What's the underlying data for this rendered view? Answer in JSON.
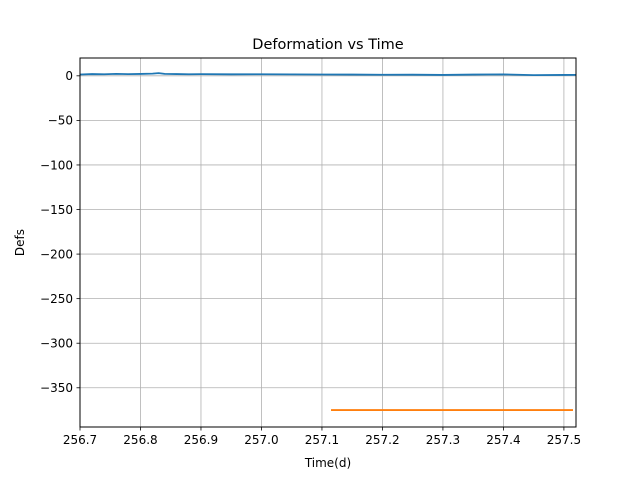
{
  "chart_data": {
    "type": "line",
    "title": "Deformation vs Time",
    "xlabel": "Time(d)",
    "ylabel": "Defs",
    "xlim": [
      256.7,
      257.52
    ],
    "ylim": [
      -394,
      20
    ],
    "xticks": [
      256.7,
      256.8,
      256.9,
      257.0,
      257.1,
      257.2,
      257.3,
      257.4,
      257.5
    ],
    "xtick_labels": [
      "256.7",
      "256.8",
      "256.9",
      "257.0",
      "257.1",
      "257.2",
      "257.3",
      "257.4",
      "257.5"
    ],
    "yticks": [
      0,
      -50,
      -100,
      -150,
      -200,
      -250,
      -300,
      -350
    ],
    "ytick_labels": [
      "0",
      "−50",
      "−100",
      "−150",
      "−200",
      "−250",
      "−300",
      "−350"
    ],
    "grid": true,
    "series": [
      {
        "color": "#1f77b4",
        "x": [
          256.7,
          256.72,
          256.74,
          256.76,
          256.78,
          256.8,
          256.82,
          256.83,
          256.84,
          256.86,
          256.88,
          256.9,
          256.95,
          257.0,
          257.05,
          257.1,
          257.15,
          257.2,
          257.25,
          257.3,
          257.35,
          257.4,
          257.45,
          257.5,
          257.52
        ],
        "y": [
          1.5,
          2.0,
          1.8,
          2.2,
          1.9,
          2.1,
          2.5,
          3.0,
          2.2,
          2.0,
          1.8,
          1.9,
          1.7,
          1.8,
          1.6,
          1.5,
          1.4,
          1.2,
          1.3,
          1.0,
          1.4,
          1.6,
          0.8,
          1.0,
          1.1
        ]
      },
      {
        "color": "#ff7f0e",
        "x": [
          257.115,
          257.515
        ],
        "y": [
          -375,
          -375
        ]
      }
    ]
  }
}
